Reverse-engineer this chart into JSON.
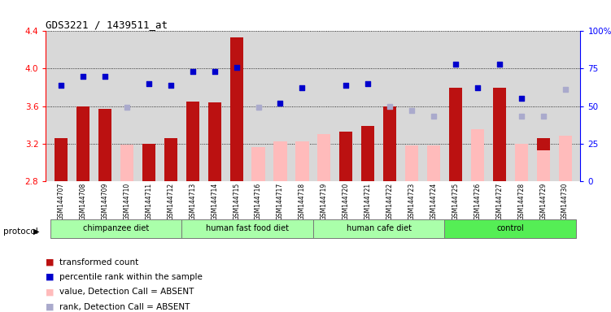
{
  "title": "GDS3221 / 1439511_at",
  "samples": [
    "GSM144707",
    "GSM144708",
    "GSM144709",
    "GSM144710",
    "GSM144711",
    "GSM144712",
    "GSM144713",
    "GSM144714",
    "GSM144715",
    "GSM144716",
    "GSM144717",
    "GSM144718",
    "GSM144719",
    "GSM144720",
    "GSM144721",
    "GSM144722",
    "GSM144723",
    "GSM144724",
    "GSM144725",
    "GSM144726",
    "GSM144727",
    "GSM144728",
    "GSM144729",
    "GSM144730"
  ],
  "transformed_count": [
    3.26,
    3.6,
    3.57,
    null,
    3.2,
    3.26,
    3.65,
    3.64,
    4.33,
    null,
    null,
    null,
    null,
    3.33,
    3.39,
    3.6,
    null,
    null,
    3.8,
    null,
    3.8,
    null,
    3.26,
    null
  ],
  "percentile_rank": [
    64,
    70,
    70,
    null,
    65,
    64,
    73,
    73,
    76,
    null,
    52,
    62,
    null,
    64,
    65,
    null,
    null,
    null,
    78,
    62,
    78,
    55,
    null,
    null
  ],
  "value_absent": [
    null,
    null,
    null,
    3.19,
    null,
    null,
    null,
    null,
    null,
    3.16,
    3.22,
    3.22,
    3.3,
    null,
    null,
    null,
    3.18,
    3.18,
    null,
    3.35,
    null,
    3.2,
    3.13,
    3.28
  ],
  "rank_absent": [
    null,
    null,
    null,
    49,
    null,
    null,
    null,
    null,
    null,
    49,
    null,
    null,
    null,
    null,
    null,
    50,
    47,
    43,
    null,
    null,
    null,
    43,
    43,
    61
  ],
  "groups": [
    {
      "label": "chimpanzee diet",
      "start": 0,
      "end": 5
    },
    {
      "label": "human fast food diet",
      "start": 6,
      "end": 11
    },
    {
      "label": "human cafe diet",
      "start": 12,
      "end": 17
    },
    {
      "label": "control",
      "start": 18,
      "end": 23
    }
  ],
  "ylim_left": [
    2.8,
    4.4
  ],
  "ylim_right": [
    0,
    100
  ],
  "yticks_left": [
    2.8,
    3.2,
    3.6,
    4.0,
    4.4
  ],
  "yticks_right": [
    0,
    25,
    50,
    75,
    100
  ],
  "bar_color": "#bb1111",
  "absent_bar_color": "#ffbbbb",
  "rank_color": "#0000cc",
  "rank_absent_color": "#aaaacc",
  "plot_bg": "#d8d8d8",
  "xtick_bg": "#c8c8c8",
  "group_color_light": "#aaffaa",
  "group_color_dark": "#55ee55"
}
